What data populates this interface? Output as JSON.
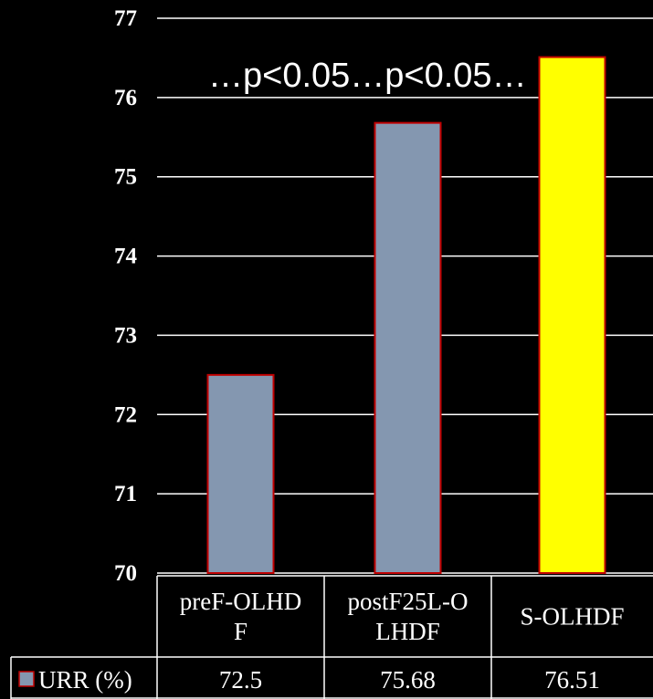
{
  "annotation": "…p<0.05…p<0.05…",
  "colors": {
    "background": "#000000",
    "gridline": "#ffffff",
    "bar_default": "#8497b0",
    "bar_highlight": "#ffff00",
    "bar_border": "#c00000",
    "text": "#ffffff"
  },
  "chart_data": {
    "type": "bar",
    "categories": [
      "preF-OLHDF",
      "postF25L-OLHDF",
      "S-OLHDF"
    ],
    "category_label_lines": [
      [
        "preF-OLHD",
        "F"
      ],
      [
        "postF25L-O",
        "LHDF"
      ],
      [
        "S-OLHDF"
      ]
    ],
    "series": [
      {
        "name": "URR (%)",
        "values": [
          72.5,
          75.68,
          76.51
        ],
        "value_labels": [
          "72.5",
          "75.68",
          "76.51"
        ],
        "color": "#8497b0",
        "highlight_index": 2,
        "highlight_color": "#ffff00"
      }
    ],
    "ylim": [
      70,
      77
    ],
    "yticks": [
      "70",
      "71",
      "72",
      "73",
      "74",
      "75",
      "76",
      "77"
    ],
    "grid": true,
    "legend": "data-table",
    "title": "",
    "xlabel": "",
    "ylabel": "",
    "annotations": [
      "…p<0.05…p<0.05…"
    ]
  }
}
